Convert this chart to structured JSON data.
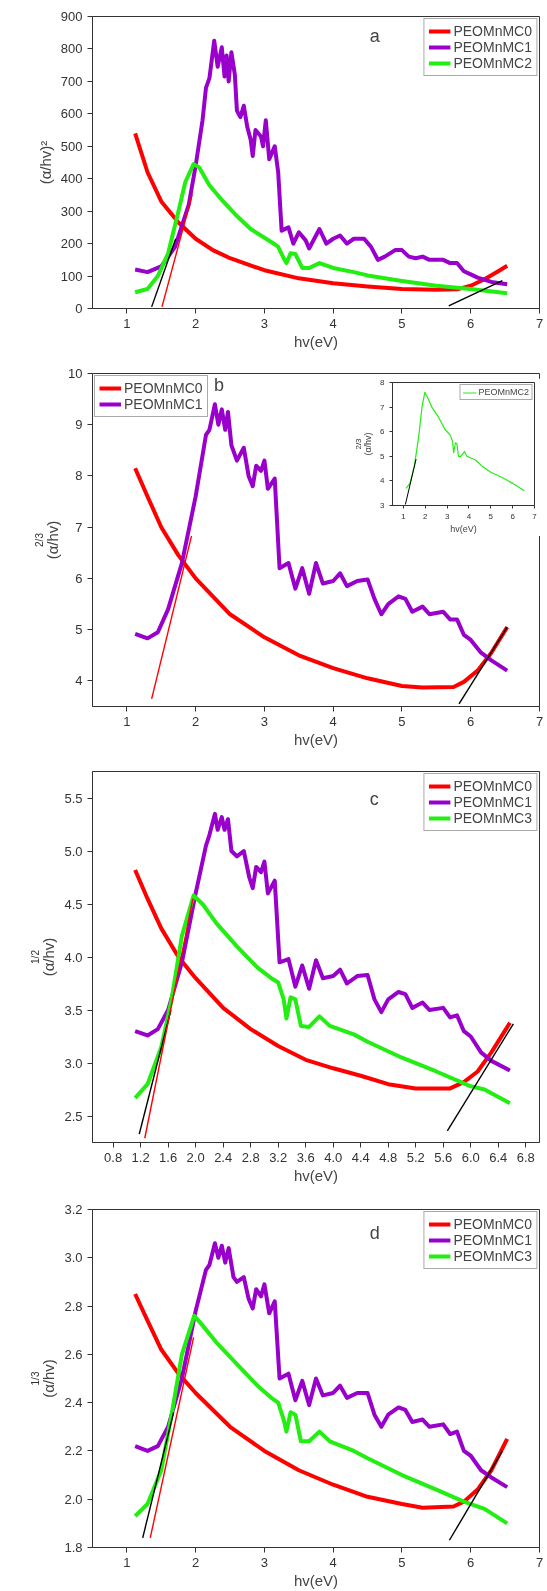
{
  "chart_data": [
    {
      "type": "line",
      "xlabel": "hv(eV)",
      "ylabel": "(α/hv)²",
      "annotations": [
        "a"
      ],
      "legend": "top right",
      "grid": false,
      "xlim": [
        0.5,
        7
      ],
      "ylim": [
        0,
        900
      ],
      "xticks": [
        1,
        2,
        3,
        4,
        5,
        6,
        7
      ],
      "yticks": [
        0,
        100,
        200,
        300,
        400,
        500,
        600,
        700,
        800,
        900
      ],
      "series": [
        {
          "name": "PEOMnMC0",
          "color": "#ff0000",
          "x": [
            1.12,
            1.3,
            1.5,
            1.75,
            2,
            2.25,
            2.5,
            3,
            3.5,
            4,
            4.5,
            5,
            5.5,
            5.8,
            6,
            6.2,
            6.4,
            6.53
          ],
          "values": [
            540,
            420,
            330,
            265,
            215,
            180,
            155,
            118,
            93,
            78,
            68,
            60,
            58,
            59,
            70,
            90,
            115,
            132
          ]
        },
        {
          "name": "PEOMnMC1",
          "color": "#9900cc",
          "x": [
            1.12,
            1.3,
            1.5,
            1.7,
            1.9,
            2.0,
            2.1,
            2.15,
            2.2,
            2.27,
            2.32,
            2.38,
            2.42,
            2.45,
            2.48,
            2.52,
            2.57,
            2.6,
            2.65,
            2.7,
            2.75,
            2.8,
            2.83,
            2.87,
            2.95,
            2.98,
            3.02,
            3.07,
            3.15,
            3.2,
            3.25,
            3.35,
            3.42,
            3.5,
            3.6,
            3.65,
            3.8,
            3.9,
            4.0,
            4.1,
            4.2,
            4.3,
            4.45,
            4.55,
            4.65,
            4.75,
            4.9,
            5.0,
            5.1,
            5.2,
            5.3,
            5.4,
            5.6,
            5.7,
            5.8,
            5.9,
            6.0,
            6.1,
            6.3,
            6.53
          ],
          "values": [
            120,
            112,
            130,
            190,
            320,
            440,
            580,
            680,
            710,
            825,
            745,
            805,
            715,
            780,
            700,
            790,
            720,
            610,
            590,
            625,
            560,
            520,
            470,
            550,
            530,
            500,
            580,
            460,
            500,
            420,
            240,
            250,
            200,
            235,
            210,
            185,
            245,
            200,
            215,
            225,
            200,
            215,
            215,
            190,
            150,
            160,
            180,
            180,
            160,
            155,
            160,
            150,
            150,
            140,
            140,
            115,
            105,
            95,
            82,
            75
          ]
        },
        {
          "name": "PEOMnMC2",
          "color": "#22ee11",
          "x": [
            1.12,
            1.3,
            1.45,
            1.6,
            1.75,
            1.85,
            1.97,
            2.05,
            2.2,
            2.4,
            2.6,
            2.8,
            3.0,
            3.15,
            3.2,
            3.28,
            3.32,
            3.38,
            3.45,
            3.55,
            3.65,
            3.8,
            4.0,
            4.3,
            4.5,
            5.0,
            5.5,
            6.0,
            6.53
          ],
          "values": [
            50,
            60,
            100,
            170,
            300,
            390,
            445,
            435,
            380,
            330,
            285,
            245,
            218,
            198,
            190,
            155,
            140,
            170,
            168,
            125,
            125,
            140,
            125,
            112,
            102,
            85,
            70,
            60,
            47
          ]
        },
        {
          "type": "line",
          "color": "#000000",
          "x": [
            1.71,
            1.36
          ],
          "values": [
            215,
            5
          ]
        },
        {
          "type": "line",
          "color": "#ff0000",
          "x": [
            1.95,
            1.51
          ],
          "values": [
            352,
            5
          ]
        },
        {
          "type": "line",
          "color": "#000000",
          "x": [
            6.46,
            5.68
          ],
          "values": [
            86,
            8
          ]
        }
      ]
    },
    {
      "type": "line",
      "xlabel": "hv(eV)",
      "ylabel": "(α/hv)$^{2/3}$",
      "annotations": [
        "b"
      ],
      "legend": "top left",
      "grid": false,
      "xlim": [
        0.5,
        7
      ],
      "ylim": [
        3.5,
        10
      ],
      "xticks": [
        1,
        2,
        3,
        4,
        5,
        6,
        7
      ],
      "yticks": [
        4,
        5,
        6,
        7,
        8,
        9,
        10
      ],
      "series": [
        {
          "name": "PEOMnMC0",
          "color": "#ff0000",
          "x": [
            1.12,
            1.3,
            1.5,
            1.75,
            2,
            2.5,
            3,
            3.5,
            4,
            4.5,
            5,
            5.3,
            5.75,
            5.9,
            6.1,
            6.3,
            6.53
          ],
          "values": [
            8.15,
            7.6,
            7.0,
            6.45,
            6.0,
            5.3,
            4.85,
            4.5,
            4.25,
            4.05,
            3.9,
            3.87,
            3.88,
            3.98,
            4.2,
            4.55,
            5.05
          ]
        },
        {
          "name": "PEOMnMC1",
          "color": "#9900cc",
          "x": [
            1.12,
            1.3,
            1.45,
            1.6,
            1.8,
            2.0,
            2.15,
            2.2,
            2.28,
            2.33,
            2.38,
            2.43,
            2.47,
            2.52,
            2.6,
            2.7,
            2.77,
            2.83,
            2.88,
            2.95,
            3.0,
            3.05,
            3.15,
            3.22,
            3.35,
            3.45,
            3.55,
            3.65,
            3.75,
            3.85,
            4.0,
            4.1,
            4.2,
            4.35,
            4.5,
            4.6,
            4.7,
            4.8,
            4.95,
            5.05,
            5.15,
            5.3,
            5.4,
            5.6,
            5.7,
            5.8,
            5.9,
            6.0,
            6.15,
            6.3,
            6.53
          ],
          "values": [
            4.92,
            4.83,
            4.95,
            5.4,
            6.3,
            7.6,
            8.8,
            8.9,
            9.4,
            9.0,
            9.3,
            8.9,
            9.25,
            8.6,
            8.3,
            8.55,
            8.0,
            7.8,
            8.2,
            8.1,
            8.3,
            7.75,
            7.95,
            6.2,
            6.3,
            5.8,
            6.2,
            5.7,
            6.3,
            5.9,
            5.95,
            6.1,
            5.85,
            5.95,
            5.98,
            5.6,
            5.3,
            5.5,
            5.65,
            5.6,
            5.35,
            5.45,
            5.3,
            5.35,
            5.2,
            5.2,
            4.9,
            4.8,
            4.55,
            4.4,
            4.2
          ]
        },
        {
          "type": "line",
          "color": "#ff0000",
          "x": [
            1.94,
            1.36
          ],
          "values": [
            6.83,
            3.65
          ]
        },
        {
          "type": "line",
          "color": "#000000",
          "x": [
            6.53,
            5.83
          ],
          "values": [
            5.05,
            3.55
          ]
        }
      ]
    },
    {
      "type": "line",
      "xlabel": "hv(eV)",
      "ylabel": "(α/hv)$^{2/3}$",
      "legend": "top right",
      "grid": false,
      "xlim": [
        0.5,
        7
      ],
      "ylim": [
        3,
        8
      ],
      "xticks": [
        1,
        2,
        3,
        4,
        5,
        6,
        7
      ],
      "yticks": [
        3,
        4,
        5,
        6,
        7,
        8
      ],
      "series": [
        {
          "name": "PEOMnMC2",
          "color": "#22ee11",
          "x": [
            1.12,
            1.3,
            1.5,
            1.7,
            1.85,
            1.98,
            2.1,
            2.3,
            2.6,
            2.9,
            3.15,
            3.25,
            3.3,
            3.38,
            3.45,
            3.52,
            3.62,
            3.8,
            3.9,
            4.3,
            4.6,
            5.0,
            5.5,
            6.0,
            6.53
          ],
          "values": [
            3.7,
            3.9,
            4.6,
            5.8,
            7.0,
            7.6,
            7.4,
            7.0,
            6.6,
            6.1,
            5.85,
            5.6,
            5.15,
            5.55,
            5.5,
            5.0,
            5.0,
            5.2,
            5.0,
            4.85,
            4.6,
            4.35,
            4.15,
            3.9,
            3.6
          ]
        },
        {
          "type": "line",
          "color": "#000000",
          "x": [
            1.58,
            1.09
          ],
          "values": [
            4.89,
            3.04
          ]
        }
      ]
    },
    {
      "type": "line",
      "xlabel": "hv(eV)",
      "ylabel": "(α/hv)$^{1/2}$",
      "annotations": [
        "c"
      ],
      "legend": "top right",
      "grid": false,
      "xlim": [
        0.5,
        7
      ],
      "ylim": [
        2.25,
        5.75
      ],
      "xticks": [
        {
          "value": 0.8,
          "label": "0.8"
        },
        {
          "value": 1.2,
          "label": "1.2"
        },
        {
          "value": 1.6,
          "label": "1.6"
        },
        {
          "value": 2,
          "label": "2.0"
        },
        {
          "value": 2.4,
          "label": "2.4"
        },
        {
          "value": 2.8,
          "label": "2.8"
        },
        {
          "value": 3.2,
          "label": "3.2"
        },
        {
          "value": 3.6,
          "label": "3.6"
        },
        {
          "value": 4,
          "label": "4.0"
        },
        {
          "value": 4.4,
          "label": "4.4"
        },
        {
          "value": 4.8,
          "label": "4.8"
        },
        {
          "value": 5.2,
          "label": "5.2"
        },
        {
          "value": 5.6,
          "label": "5.6"
        },
        {
          "value": 6,
          "label": "6.0"
        },
        {
          "value": 6.4,
          "label": "6.4"
        },
        {
          "value": 6.8,
          "label": "6.8"
        }
      ],
      "yticks": [
        2.5,
        {
          "value": 3,
          "label": "3.0"
        },
        3.5,
        {
          "value": 4,
          "label": "4.0"
        },
        4.5,
        {
          "value": 5,
          "label": "5.0"
        },
        5.5
      ],
      "series": [
        {
          "name": "PEOMnMC0",
          "color": "#ff0000",
          "x": [
            1.12,
            1.3,
            1.5,
            1.75,
            2.0,
            2.4,
            2.8,
            3.2,
            3.6,
            4.0,
            4.4,
            4.8,
            5.2,
            5.7,
            5.9,
            6.1,
            6.3,
            6.57
          ],
          "values": [
            4.82,
            4.55,
            4.27,
            4.0,
            3.8,
            3.52,
            3.32,
            3.16,
            3.03,
            2.95,
            2.88,
            2.8,
            2.76,
            2.76,
            2.82,
            2.92,
            3.1,
            3.38
          ]
        },
        {
          "name": "PEOMnMC1",
          "color": "#9900cc",
          "x": [
            1.12,
            1.3,
            1.45,
            1.6,
            1.8,
            2.0,
            2.15,
            2.2,
            2.28,
            2.32,
            2.38,
            2.42,
            2.47,
            2.52,
            2.6,
            2.7,
            2.78,
            2.83,
            2.88,
            2.95,
            3.0,
            3.05,
            3.15,
            3.22,
            3.35,
            3.45,
            3.55,
            3.65,
            3.75,
            3.85,
            4.0,
            4.1,
            4.2,
            4.35,
            4.5,
            4.6,
            4.7,
            4.8,
            4.95,
            5.05,
            5.15,
            5.3,
            5.4,
            5.6,
            5.7,
            5.8,
            5.9,
            6.0,
            6.15,
            6.3,
            6.57
          ],
          "values": [
            3.3,
            3.26,
            3.32,
            3.5,
            3.95,
            4.6,
            5.05,
            5.15,
            5.35,
            5.2,
            5.32,
            5.2,
            5.3,
            5.0,
            4.95,
            5.0,
            4.75,
            4.65,
            4.85,
            4.8,
            4.9,
            4.6,
            4.72,
            3.95,
            3.98,
            3.72,
            3.92,
            3.7,
            3.97,
            3.8,
            3.82,
            3.88,
            3.75,
            3.82,
            3.83,
            3.6,
            3.48,
            3.6,
            3.67,
            3.65,
            3.52,
            3.57,
            3.5,
            3.52,
            3.43,
            3.45,
            3.3,
            3.25,
            3.1,
            3.02,
            2.93
          ]
        },
        {
          "name": "PEOMnMC3",
          "color": "#22ee11",
          "x": [
            1.12,
            1.3,
            1.5,
            1.65,
            1.8,
            1.97,
            2.1,
            2.3,
            2.6,
            2.9,
            3.1,
            3.2,
            3.28,
            3.32,
            3.38,
            3.45,
            3.53,
            3.65,
            3.8,
            3.95,
            4.3,
            4.5,
            5.0,
            5.5,
            6.0,
            6.2,
            6.57
          ],
          "values": [
            2.67,
            2.8,
            3.15,
            3.6,
            4.2,
            4.58,
            4.5,
            4.32,
            4.1,
            3.9,
            3.8,
            3.76,
            3.6,
            3.42,
            3.62,
            3.6,
            3.35,
            3.34,
            3.44,
            3.35,
            3.27,
            3.2,
            3.05,
            2.92,
            2.78,
            2.75,
            2.62
          ]
        },
        {
          "type": "line",
          "color": "#000000",
          "x": [
            1.64,
            1.18
          ],
          "values": [
            3.5,
            2.33
          ]
        },
        {
          "type": "line",
          "color": "#ff0000",
          "x": [
            1.96,
            1.26
          ],
          "values": [
            4.55,
            2.29
          ]
        },
        {
          "type": "line",
          "color": "#000000",
          "x": [
            6.62,
            5.66
          ],
          "values": [
            3.37,
            2.36
          ]
        }
      ]
    },
    {
      "type": "line",
      "xlabel": "hv(eV)",
      "ylabel": "(α/hv)$^{1/3}$",
      "annotations": [
        "d"
      ],
      "legend": "top right",
      "grid": false,
      "xlim": [
        0.5,
        7
      ],
      "ylim": [
        1.8,
        3.2
      ],
      "xticks": [
        1,
        2,
        3,
        4,
        5,
        6,
        7
      ],
      "yticks": [
        1.8,
        {
          "value": 2,
          "label": "2.0"
        },
        2.2,
        2.4,
        2.6,
        2.8,
        {
          "value": 3,
          "label": "3.0"
        },
        3.2
      ],
      "series": [
        {
          "name": "PEOMnMC0",
          "color": "#ff0000",
          "x": [
            1.12,
            1.3,
            1.5,
            1.75,
            2.0,
            2.5,
            3.0,
            3.5,
            4.0,
            4.5,
            5.0,
            5.3,
            5.75,
            5.9,
            6.1,
            6.3,
            6.53
          ],
          "values": [
            2.85,
            2.74,
            2.62,
            2.52,
            2.44,
            2.3,
            2.2,
            2.12,
            2.06,
            2.01,
            1.98,
            1.965,
            1.97,
            1.99,
            2.04,
            2.12,
            2.25
          ]
        },
        {
          "name": "PEOMnMC1",
          "color": "#9900cc",
          "x": [
            1.12,
            1.3,
            1.45,
            1.6,
            1.8,
            2.0,
            2.15,
            2.2,
            2.28,
            2.33,
            2.38,
            2.43,
            2.48,
            2.55,
            2.6,
            2.7,
            2.77,
            2.83,
            2.88,
            2.95,
            3.0,
            3.07,
            3.15,
            3.22,
            3.35,
            3.45,
            3.55,
            3.65,
            3.75,
            3.85,
            4.0,
            4.1,
            4.2,
            4.35,
            4.5,
            4.6,
            4.7,
            4.8,
            4.95,
            5.05,
            5.15,
            5.3,
            5.4,
            5.6,
            5.7,
            5.8,
            5.9,
            6.0,
            6.15,
            6.3,
            6.53
          ],
          "values": [
            2.22,
            2.2,
            2.22,
            2.3,
            2.5,
            2.78,
            2.95,
            2.97,
            3.06,
            3.0,
            3.05,
            2.98,
            3.04,
            2.92,
            2.9,
            2.92,
            2.83,
            2.79,
            2.87,
            2.84,
            2.89,
            2.77,
            2.82,
            2.5,
            2.52,
            2.41,
            2.49,
            2.39,
            2.5,
            2.43,
            2.44,
            2.47,
            2.42,
            2.44,
            2.44,
            2.35,
            2.3,
            2.35,
            2.38,
            2.37,
            2.32,
            2.33,
            2.3,
            2.31,
            2.27,
            2.28,
            2.2,
            2.18,
            2.12,
            2.09,
            2.05
          ]
        },
        {
          "name": "PEOMnMC3",
          "color": "#22ee11",
          "x": [
            1.12,
            1.3,
            1.5,
            1.65,
            1.8,
            1.98,
            2.1,
            2.3,
            2.6,
            2.9,
            3.1,
            3.2,
            3.28,
            3.32,
            3.38,
            3.45,
            3.53,
            3.65,
            3.8,
            3.95,
            4.3,
            4.5,
            5.0,
            5.5,
            5.9,
            6.2,
            6.53
          ],
          "values": [
            1.93,
            1.98,
            2.12,
            2.35,
            2.6,
            2.76,
            2.72,
            2.65,
            2.56,
            2.47,
            2.42,
            2.4,
            2.33,
            2.28,
            2.36,
            2.35,
            2.24,
            2.24,
            2.28,
            2.24,
            2.2,
            2.17,
            2.1,
            2.04,
            1.99,
            1.96,
            1.9
          ]
        },
        {
          "type": "line",
          "color": "#000000",
          "x": [
            1.68,
            1.23
          ],
          "values": [
            2.36,
            1.84
          ]
        },
        {
          "type": "line",
          "color": "#ff0000",
          "x": [
            1.97,
            1.34
          ],
          "values": [
            2.67,
            1.84
          ]
        },
        {
          "type": "line",
          "color": "#000000",
          "x": [
            6.46,
            5.69
          ],
          "values": [
            2.2,
            1.83
          ]
        }
      ]
    }
  ]
}
